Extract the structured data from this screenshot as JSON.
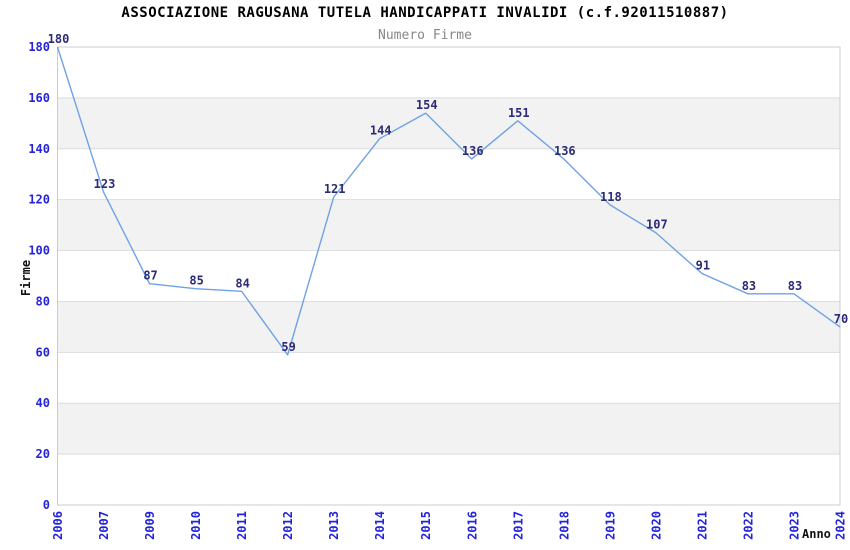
{
  "chart_data": {
    "type": "line",
    "title": "ASSOCIAZIONE RAGUSANA TUTELA HANDICAPPATI INVALIDI (c.f.92011510887)",
    "subtitle": "Numero Firme",
    "xlabel": "Anno",
    "ylabel": "Firme",
    "categories": [
      "2006",
      "2007",
      "2009",
      "2010",
      "2011",
      "2012",
      "2013",
      "2014",
      "2015",
      "2016",
      "2017",
      "2018",
      "2019",
      "2020",
      "2021",
      "2022",
      "2023",
      "2024"
    ],
    "values": [
      180,
      123,
      87,
      85,
      84,
      59,
      121,
      144,
      154,
      136,
      151,
      136,
      118,
      107,
      91,
      83,
      83,
      70
    ],
    "ylim": [
      0,
      180
    ],
    "ytick_step": 20,
    "yticks": [
      0,
      20,
      40,
      60,
      80,
      100,
      120,
      140,
      160,
      180
    ],
    "grid": true,
    "legend_position": "none",
    "note": "year 2008 absent from x axis",
    "colors": {
      "line": "#6fa2e4",
      "band": "#f2f2f2",
      "grid": "#dddddd",
      "border": "#cccccc",
      "axis_tick_text": "#2323dd",
      "point_label": "#2b2b77",
      "title": "#000000",
      "subtitle": "#878787",
      "axis_title": "#111111"
    }
  }
}
